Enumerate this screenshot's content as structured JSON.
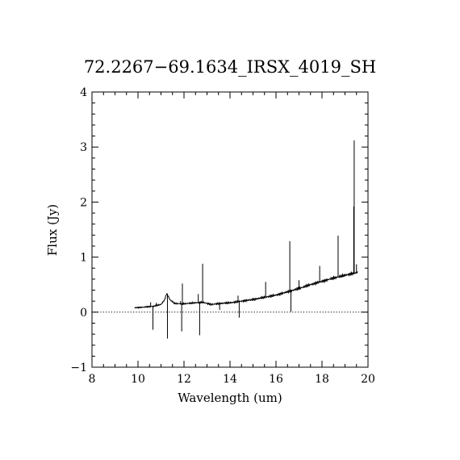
{
  "chart_data": {
    "type": "line",
    "title": "72.2267−69.1634_IRSX_4019_SH",
    "xlabel": "Wavelength (um)",
    "ylabel": "Flux (Jy)",
    "xlim": [
      8,
      20
    ],
    "ylim": [
      -1,
      4
    ],
    "x_ticks": [
      "8",
      "10",
      "12",
      "14",
      "16",
      "18",
      "20"
    ],
    "y_ticks": [
      "−1",
      "0",
      "1",
      "2",
      "3",
      "4"
    ],
    "zero_line": true,
    "series": [
      {
        "x": [
          9.85,
          10.2,
          10.5,
          10.7,
          11.0,
          11.15,
          11.25,
          11.4,
          11.6,
          11.9,
          12.2,
          12.5,
          12.8,
          13.2,
          13.6,
          14.0,
          14.5,
          15.0,
          15.5,
          16.0,
          16.5,
          17.0,
          17.5,
          18.0,
          18.5,
          19.0,
          19.3,
          19.55
        ],
        "y": [
          0.08,
          0.09,
          0.1,
          0.11,
          0.14,
          0.22,
          0.34,
          0.22,
          0.16,
          0.15,
          0.16,
          0.17,
          0.18,
          0.14,
          0.16,
          0.17,
          0.2,
          0.23,
          0.27,
          0.31,
          0.37,
          0.43,
          0.5,
          0.56,
          0.62,
          0.67,
          0.7,
          0.72
        ]
      }
    ],
    "spikes": [
      {
        "x": 10.55,
        "y": 0.18
      },
      {
        "x": 10.65,
        "y": -0.32
      },
      {
        "x": 10.8,
        "y": 0.17
      },
      {
        "x": 11.28,
        "y": -0.48
      },
      {
        "x": 11.85,
        "y": 0.2
      },
      {
        "x": 11.9,
        "y": -0.35
      },
      {
        "x": 11.93,
        "y": 0.52
      },
      {
        "x": 12.62,
        "y": 0.33
      },
      {
        "x": 12.68,
        "y": -0.42
      },
      {
        "x": 12.81,
        "y": 0.88
      },
      {
        "x": 13.55,
        "y": 0.04
      },
      {
        "x": 14.35,
        "y": 0.3
      },
      {
        "x": 14.4,
        "y": -0.1
      },
      {
        "x": 15.55,
        "y": 0.55
      },
      {
        "x": 16.6,
        "y": 1.29
      },
      {
        "x": 16.65,
        "y": 0.01
      },
      {
        "x": 17.0,
        "y": 0.58
      },
      {
        "x": 17.9,
        "y": 0.84
      },
      {
        "x": 18.7,
        "y": 1.39
      },
      {
        "x": 19.38,
        "y": 1.92
      },
      {
        "x": 19.4,
        "y": 3.12
      },
      {
        "x": 19.5,
        "y": 0.87
      }
    ]
  }
}
